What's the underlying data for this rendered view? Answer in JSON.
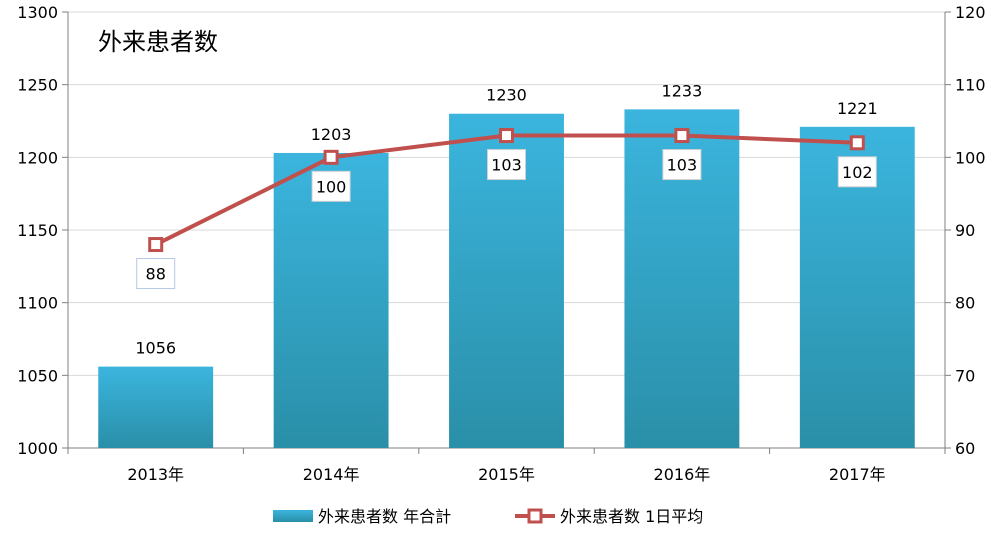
{
  "chart_data": {
    "type": "bar+line",
    "title": "外来患者数",
    "categories": [
      "2013年",
      "2014年",
      "2015年",
      "2016年",
      "2017年"
    ],
    "series": [
      {
        "name": "外来患者数 年合計",
        "type": "bar",
        "axis": "left",
        "values": [
          1056,
          1203,
          1230,
          1233,
          1221
        ]
      },
      {
        "name": "外来患者数 1日平均",
        "type": "line",
        "axis": "right",
        "values": [
          88,
          100,
          103,
          103,
          102
        ]
      }
    ],
    "y_left": {
      "min": 1000,
      "max": 1300,
      "ticks": [
        1000,
        1050,
        1100,
        1150,
        1200,
        1250,
        1300
      ]
    },
    "y_right": {
      "min": 60,
      "max": 120,
      "ticks": [
        60,
        70,
        80,
        90,
        100,
        110,
        120
      ]
    },
    "colors": {
      "bar_top": "#3bb5de",
      "bar_bottom": "#2a8fa8",
      "line": "#c0504d",
      "grid": "#d9d9d9",
      "axis": "#808080"
    },
    "grid": true,
    "legend_position": "bottom"
  }
}
